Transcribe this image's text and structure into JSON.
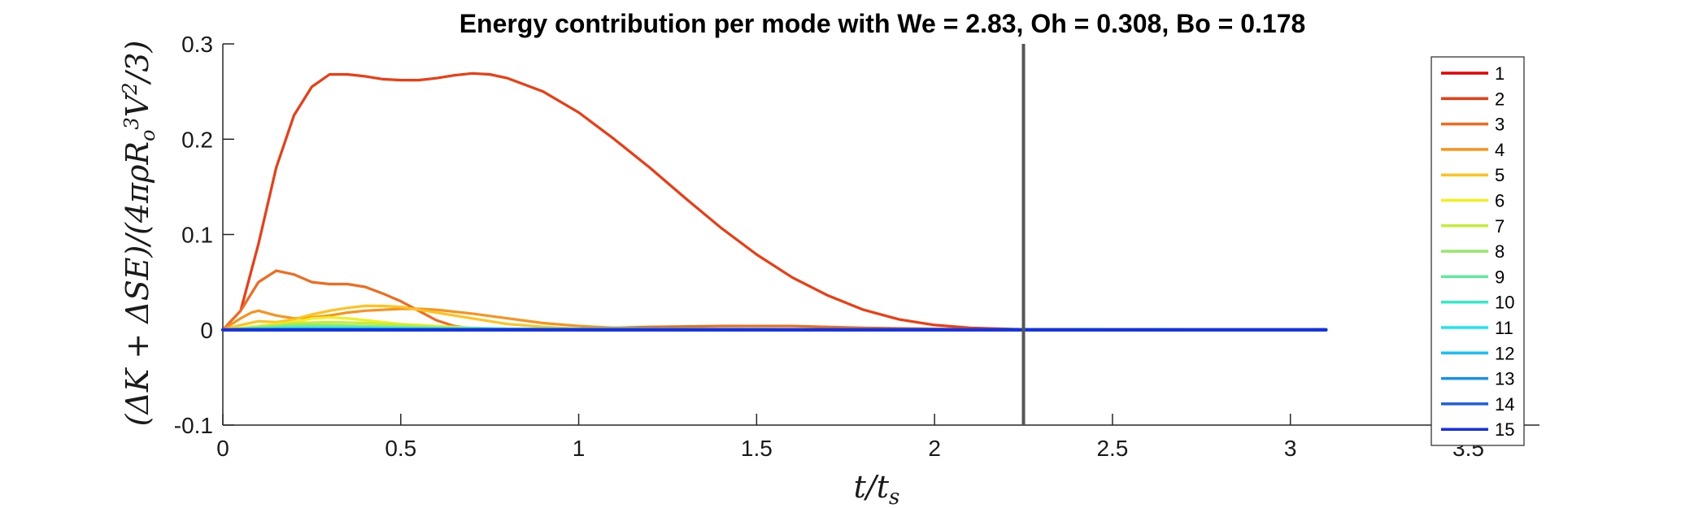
{
  "chart_data": {
    "type": "line",
    "title": "Energy contribution per mode with We = 2.83, Oh = 0.308, Bo = 0.178",
    "xlabel": "t/t_s",
    "ylabel": "(ΔK + ΔSE)/(4πρR_o³V²/3)",
    "xlim": [
      0,
      3.7
    ],
    "ylim": [
      -0.1,
      0.3
    ],
    "xticks": [
      0,
      0.5,
      1,
      1.5,
      2,
      2.5,
      3,
      3.5
    ],
    "xtick_labels": [
      "0",
      "0.5",
      "1",
      "1.5",
      "2",
      "2.5",
      "3",
      "3.5"
    ],
    "yticks": [
      -0.1,
      0,
      0.1,
      0.2,
      0.3
    ],
    "ytick_labels": [
      "-0.1",
      "0",
      "0.1",
      "0.2",
      "0.3"
    ],
    "grid": false,
    "legend_position": "right",
    "vline": {
      "x": 2.25,
      "color": "#555555"
    },
    "series": [
      {
        "name": "1",
        "color": "#e60000",
        "x": [
          0,
          3.1
        ],
        "y": [
          0,
          0
        ]
      },
      {
        "name": "2",
        "color": "#f03a10",
        "x": [
          0,
          0.05,
          0.1,
          0.15,
          0.2,
          0.25,
          0.3,
          0.35,
          0.4,
          0.45,
          0.5,
          0.55,
          0.6,
          0.65,
          0.7,
          0.75,
          0.8,
          0.9,
          1.0,
          1.1,
          1.2,
          1.3,
          1.4,
          1.5,
          1.6,
          1.7,
          1.8,
          1.9,
          2.0,
          2.1,
          2.2,
          2.3,
          2.5,
          2.75,
          3.0,
          3.1
        ],
        "y": [
          0,
          0.02,
          0.09,
          0.17,
          0.225,
          0.255,
          0.268,
          0.268,
          0.266,
          0.263,
          0.262,
          0.262,
          0.264,
          0.267,
          0.269,
          0.268,
          0.264,
          0.25,
          0.228,
          0.2,
          0.17,
          0.138,
          0.107,
          0.079,
          0.055,
          0.036,
          0.021,
          0.011,
          0.005,
          0.002,
          0.001,
          0,
          0,
          0,
          0,
          0
        ]
      },
      {
        "name": "3",
        "color": "#f26a1e",
        "x": [
          0,
          0.05,
          0.1,
          0.15,
          0.2,
          0.25,
          0.3,
          0.35,
          0.4,
          0.45,
          0.5,
          0.55,
          0.6,
          0.65,
          0.7,
          0.8,
          0.9,
          1.0,
          1.1,
          1.2,
          1.4,
          1.6,
          1.8,
          2.0,
          2.25,
          3.1
        ],
        "y": [
          0,
          0.02,
          0.05,
          0.062,
          0.058,
          0.05,
          0.048,
          0.048,
          0.045,
          0.038,
          0.03,
          0.02,
          0.01,
          0.004,
          0.001,
          0,
          0,
          0.001,
          0.002,
          0.003,
          0.004,
          0.004,
          0.002,
          0.001,
          0,
          0
        ]
      },
      {
        "name": "4",
        "color": "#f8941e",
        "x": [
          0,
          0.05,
          0.08,
          0.1,
          0.15,
          0.2,
          0.25,
          0.3,
          0.35,
          0.4,
          0.45,
          0.5,
          0.55,
          0.6,
          0.7,
          0.8,
          0.9,
          1.0,
          1.1,
          1.2,
          1.4,
          3.1
        ],
        "y": [
          0,
          0.012,
          0.018,
          0.02,
          0.015,
          0.012,
          0.013,
          0.015,
          0.018,
          0.02,
          0.021,
          0.022,
          0.022,
          0.021,
          0.017,
          0.012,
          0.007,
          0.004,
          0.002,
          0.001,
          0,
          0
        ]
      },
      {
        "name": "5",
        "color": "#ffc21e",
        "x": [
          0,
          0.05,
          0.1,
          0.15,
          0.2,
          0.25,
          0.3,
          0.35,
          0.4,
          0.45,
          0.5,
          0.55,
          0.6,
          0.7,
          0.8,
          0.9,
          1.0,
          1.2,
          3.1
        ],
        "y": [
          0,
          0.005,
          0.009,
          0.008,
          0.011,
          0.016,
          0.02,
          0.023,
          0.025,
          0.025,
          0.024,
          0.021,
          0.018,
          0.012,
          0.006,
          0.003,
          0.001,
          0,
          0
        ]
      },
      {
        "name": "6",
        "color": "#f2ef1e",
        "x": [
          0,
          0.1,
          0.2,
          0.25,
          0.3,
          0.35,
          0.4,
          0.45,
          0.5,
          0.6,
          0.7,
          0.8,
          1.0,
          3.1
        ],
        "y": [
          0,
          0.004,
          0.008,
          0.012,
          0.013,
          0.012,
          0.01,
          0.008,
          0.006,
          0.004,
          0.002,
          0.001,
          0,
          0
        ]
      },
      {
        "name": "7",
        "color": "#c5ec3a",
        "x": [
          0,
          0.1,
          0.2,
          0.3,
          0.4,
          0.5,
          0.6,
          0.8,
          1.0,
          3.1
        ],
        "y": [
          0,
          0.003,
          0.007,
          0.008,
          0.007,
          0.005,
          0.003,
          0.001,
          0,
          0
        ]
      },
      {
        "name": "8",
        "color": "#96e86a",
        "x": [
          0,
          0.1,
          0.2,
          0.3,
          0.4,
          0.6,
          0.8,
          3.1
        ],
        "y": [
          0,
          0.002,
          0.005,
          0.005,
          0.004,
          0.002,
          0.001,
          0
        ]
      },
      {
        "name": "9",
        "color": "#5fe8a0",
        "x": [
          0,
          0.1,
          0.2,
          0.3,
          0.5,
          0.8,
          3.1
        ],
        "y": [
          0,
          0.002,
          0.003,
          0.003,
          0.002,
          0.001,
          0
        ]
      },
      {
        "name": "10",
        "color": "#37e8cc",
        "x": [
          0,
          0.2,
          0.4,
          0.8,
          3.1
        ],
        "y": [
          0,
          0.002,
          0.002,
          0.001,
          0
        ]
      },
      {
        "name": "11",
        "color": "#1ee5f2",
        "x": [
          0,
          0.2,
          0.5,
          3.1
        ],
        "y": [
          0,
          0.001,
          0.001,
          0
        ]
      },
      {
        "name": "12",
        "color": "#19c0f2",
        "x": [
          0,
          3.1
        ],
        "y": [
          0,
          0
        ]
      },
      {
        "name": "13",
        "color": "#1a90ee",
        "x": [
          0,
          3.1
        ],
        "y": [
          0,
          0
        ]
      },
      {
        "name": "14",
        "color": "#1a5fe6",
        "x": [
          0,
          3.1
        ],
        "y": [
          0,
          0
        ]
      },
      {
        "name": "15",
        "color": "#1530e0",
        "x": [
          0,
          3.1
        ],
        "y": [
          0,
          0
        ]
      }
    ]
  }
}
